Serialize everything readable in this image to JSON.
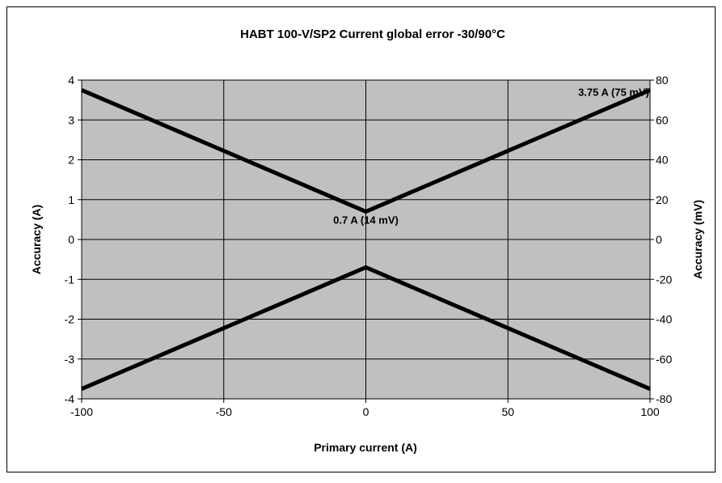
{
  "chart_data": {
    "type": "line",
    "title": "HABT 100-V/SP2  Current global error -30/90°C",
    "xlabel": "Primary current (A)",
    "ylabel": "Accuracy (A)",
    "y2label": "Accuracy (mV)",
    "xlim": [
      -100,
      100
    ],
    "ylim": [
      -4,
      4
    ],
    "y2lim": [
      -80,
      80
    ],
    "xticks": [
      "-100",
      "-50",
      "0",
      "50",
      "100"
    ],
    "yticks": [
      "4",
      "3",
      "2",
      "1",
      "0",
      "-1",
      "-2",
      "-3",
      "-4"
    ],
    "y2ticks": [
      "80",
      "60",
      "40",
      "20",
      "0",
      "-20",
      "-40",
      "-60",
      "-80"
    ],
    "grid": true,
    "plot_background": "#c0c0c0",
    "line_color": "#000000",
    "series": [
      {
        "x": [
          -100,
          0,
          100
        ],
        "values": [
          3.75,
          0.7,
          3.75
        ]
      },
      {
        "x": [
          -100,
          0,
          100
        ],
        "values": [
          -3.75,
          -0.7,
          -3.75
        ]
      }
    ],
    "annotations": [
      {
        "text": "3.75 A (75 mV)",
        "x": 100,
        "y": 3.75
      },
      {
        "text": "0.7 A (14 mV)",
        "x": 0,
        "y": 0.7
      }
    ]
  }
}
